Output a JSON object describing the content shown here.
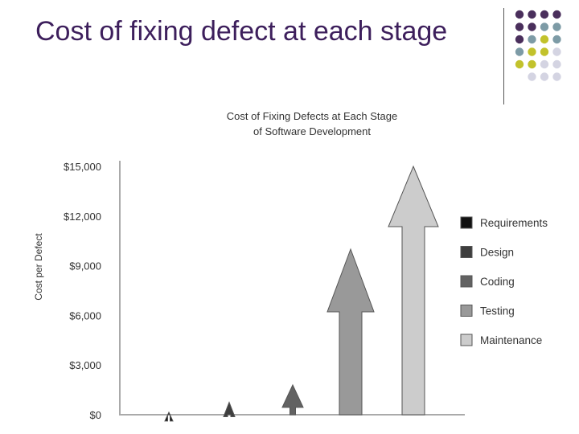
{
  "slide": {
    "title": "Cost of fixing defect at each stage"
  },
  "decor": {
    "dot_colors": {
      "purple": "#4a2f5c",
      "teal": "#7d9ba6",
      "olive": "#c2c22c",
      "lavender": "#d4d4e2"
    }
  },
  "chart_data": {
    "type": "bar",
    "title_lines": [
      "Cost of Fixing Defects at Each Stage",
      "of Software Development"
    ],
    "xlabel": "",
    "ylabel": "Cost per Defect",
    "ylim": [
      0,
      15000
    ],
    "ytick_values": [
      0,
      3000,
      6000,
      9000,
      12000,
      15000
    ],
    "ytick_labels": [
      "$0",
      "$3,000",
      "$6,000",
      "$9,000",
      "$12,000",
      "$15,000"
    ],
    "grid": false,
    "legend_position": "right",
    "categories": [
      "Requirements",
      "Design",
      "Coding",
      "Testing",
      "Maintenance"
    ],
    "values": [
      150,
      750,
      1800,
      10000,
      15000
    ],
    "colors": [
      "#111111",
      "#3e3e3e",
      "#626262",
      "#999999",
      "#cccccc"
    ]
  }
}
